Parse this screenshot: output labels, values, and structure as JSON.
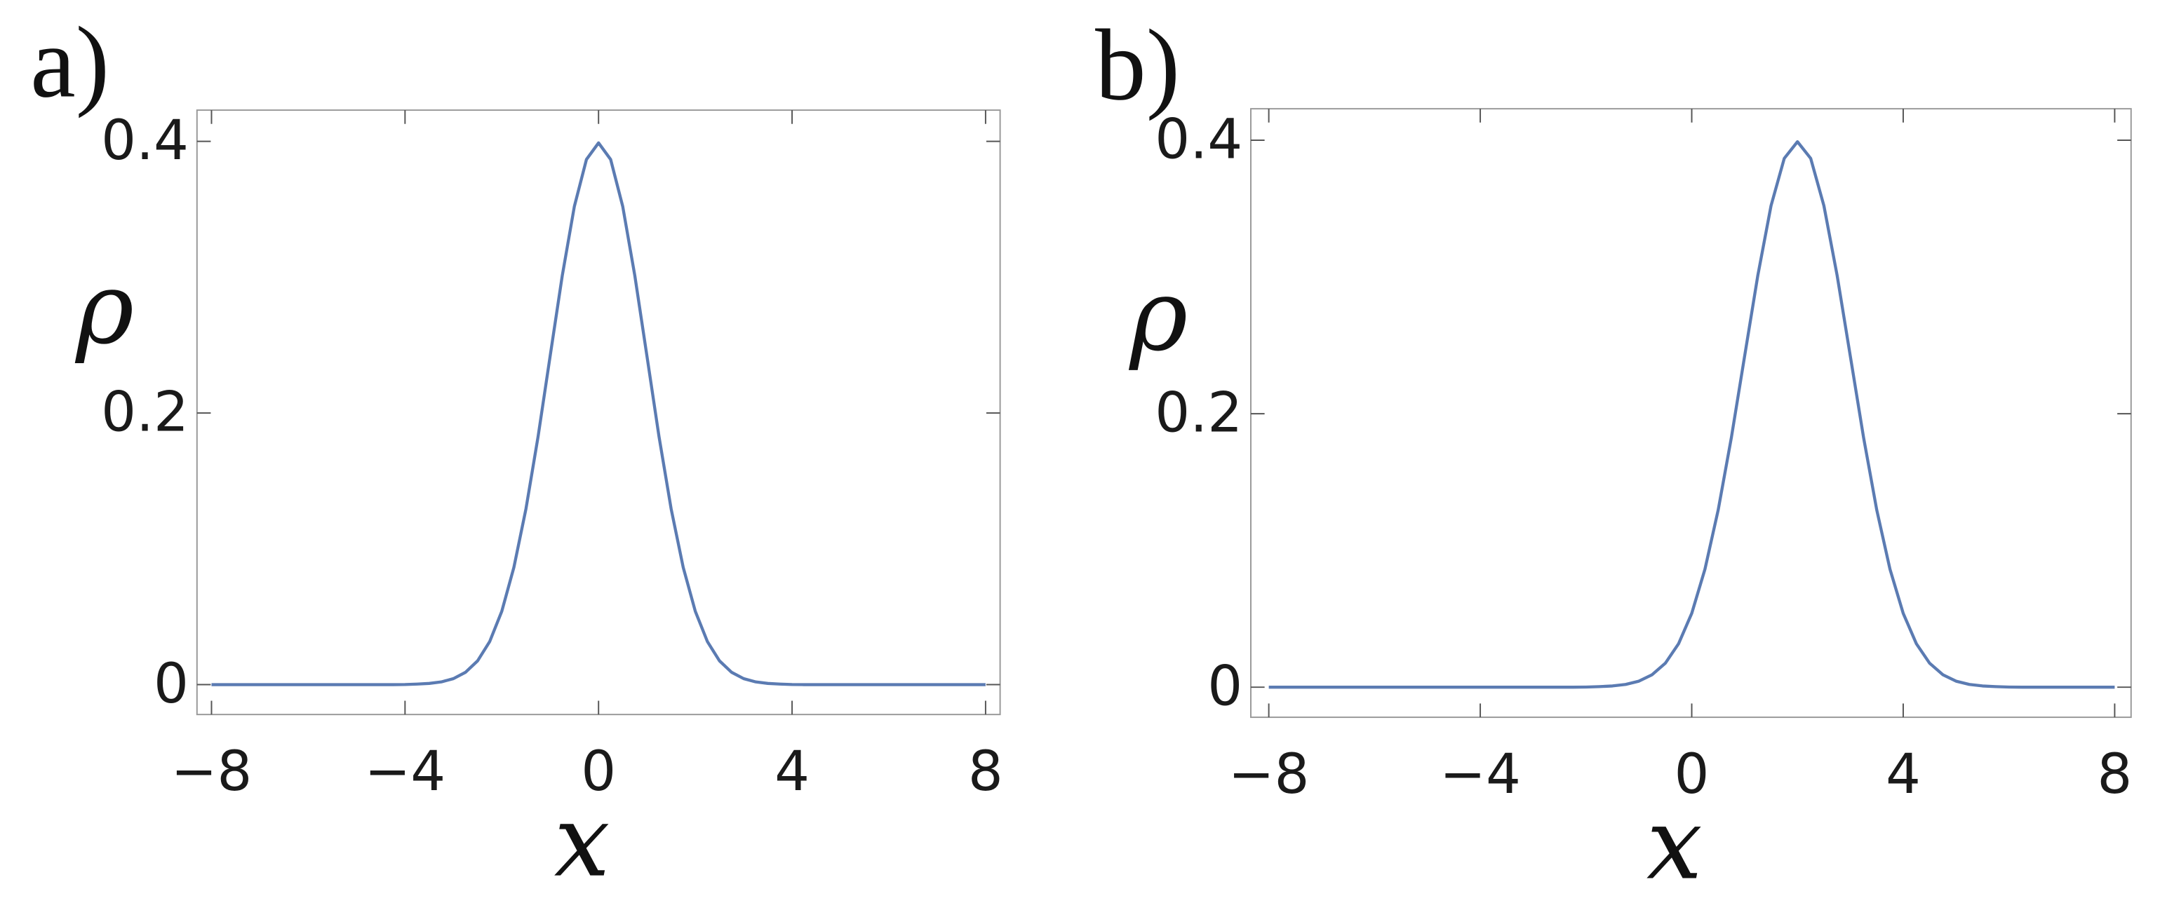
{
  "chart_data": [
    {
      "type": "line",
      "panel_label": "a)",
      "xlabel": "x",
      "ylabel": "ρ",
      "xlim": [
        -8.3,
        8.3
      ],
      "ylim": [
        -0.022,
        0.423
      ],
      "xticks": [
        {
          "value": -8,
          "label": "−8"
        },
        {
          "value": -4,
          "label": "−4"
        },
        0,
        4,
        8
      ],
      "yticks": [
        0,
        0.2,
        0.4
      ],
      "x": [
        -8,
        -7.75,
        -7.5,
        -7.25,
        -7,
        -6.75,
        -6.5,
        -6.25,
        -6,
        -5.75,
        -5.5,
        -5.25,
        -5,
        -4.75,
        -4.5,
        -4.25,
        -4,
        -3.75,
        -3.5,
        -3.25,
        -3,
        -2.75,
        -2.5,
        -2.25,
        -2,
        -1.75,
        -1.5,
        -1.25,
        -1,
        -0.75,
        -0.5,
        -0.25,
        0,
        0.25,
        0.5,
        0.75,
        1,
        1.25,
        1.5,
        1.75,
        2,
        2.25,
        2.5,
        2.75,
        3,
        3.25,
        3.5,
        3.75,
        4,
        4.25,
        4.5,
        4.75,
        5,
        5.25,
        5.5,
        5.75,
        6,
        6.25,
        6.5,
        6.75,
        7,
        7.25,
        7.5,
        7.75,
        8
      ],
      "series": [
        {
          "color": "#5b7bb2",
          "values": [
            0,
            0,
            0,
            0,
            0,
            0,
            0,
            0,
            0,
            0,
            0,
            0,
            0,
            0,
            0,
            0,
            0.0001,
            0.0004,
            0.0009,
            0.002,
            0.0044,
            0.0091,
            0.0175,
            0.0317,
            0.054,
            0.0863,
            0.1295,
            0.1826,
            0.242,
            0.3011,
            0.3521,
            0.3867,
            0.3989,
            0.3867,
            0.3521,
            0.3011,
            0.242,
            0.1826,
            0.1295,
            0.0863,
            0.054,
            0.0317,
            0.0175,
            0.0091,
            0.0044,
            0.002,
            0.0009,
            0.0004,
            0.0001,
            0,
            0,
            0,
            0,
            0,
            0,
            0,
            0,
            0,
            0,
            0,
            0,
            0,
            0,
            0,
            0
          ]
        }
      ]
    },
    {
      "type": "line",
      "panel_label": "b)",
      "xlabel": "x",
      "ylabel": "ρ",
      "xlim": [
        -8.34,
        8.31
      ],
      "ylim": [
        -0.022,
        0.423
      ],
      "xticks": [
        {
          "value": -8,
          "label": "−8"
        },
        {
          "value": -4,
          "label": "−4"
        },
        0,
        4,
        8
      ],
      "yticks": [
        0,
        0.2,
        0.4
      ],
      "x": [
        -8,
        -7.75,
        -7.5,
        -7.25,
        -7,
        -6.75,
        -6.5,
        -6.25,
        -6,
        -5.75,
        -5.5,
        -5.25,
        -5,
        -4.75,
        -4.5,
        -4.25,
        -4,
        -3.75,
        -3.5,
        -3.25,
        -3,
        -2.75,
        -2.5,
        -2.25,
        -2,
        -1.75,
        -1.5,
        -1.25,
        -1,
        -0.75,
        -0.5,
        -0.25,
        0,
        0.25,
        0.5,
        0.75,
        1,
        1.25,
        1.5,
        1.75,
        2,
        2.25,
        2.5,
        2.75,
        3,
        3.25,
        3.5,
        3.75,
        4,
        4.25,
        4.5,
        4.75,
        5,
        5.25,
        5.5,
        5.75,
        6,
        6.25,
        6.5,
        6.75,
        7,
        7.25,
        7.5,
        7.75,
        8
      ],
      "series": [
        {
          "color": "#5b7bb2",
          "values": [
            0,
            0,
            0,
            0,
            0,
            0,
            0,
            0,
            0,
            0,
            0,
            0,
            0,
            0,
            0,
            0,
            0,
            0,
            0,
            0,
            0,
            0,
            0,
            0,
            0.0001,
            0.0004,
            0.0009,
            0.002,
            0.0044,
            0.0091,
            0.0175,
            0.0317,
            0.054,
            0.0863,
            0.1295,
            0.1826,
            0.242,
            0.3011,
            0.3521,
            0.3867,
            0.3989,
            0.3867,
            0.3521,
            0.3011,
            0.242,
            0.1826,
            0.1295,
            0.0863,
            0.054,
            0.0317,
            0.0175,
            0.0091,
            0.0044,
            0.002,
            0.0009,
            0.0004,
            0.0001,
            0,
            0,
            0,
            0,
            0,
            0,
            0,
            0
          ]
        }
      ]
    }
  ]
}
